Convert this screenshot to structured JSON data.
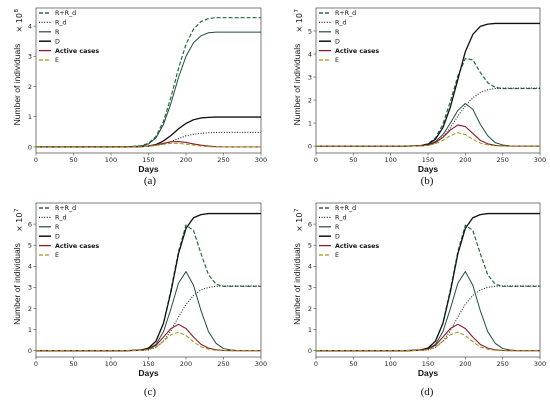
{
  "colors": {
    "R+R_d": "#1f6e3a",
    "R_d": "#222222",
    "R": "#1f4f3f",
    "D": "#111111",
    "Active cases": "#8b1a2b",
    "E": "#9a9a18"
  },
  "legend_bold": [
    "Active cases"
  ],
  "chart_data": [
    {
      "type": "line",
      "caption": "(a)",
      "xlabel": "Days",
      "ylabel": "Number of individuals",
      "scale_label": "× 10",
      "scale_exp": "8",
      "xlim": [
        0,
        300
      ],
      "ylim": [
        -0.2,
        4.6
      ],
      "xticks": [
        "0",
        "50",
        "100",
        "150",
        "200",
        "250",
        "300"
      ],
      "yticks": [
        "0",
        "1",
        "2",
        "3",
        "4"
      ],
      "x": [
        0,
        20,
        40,
        60,
        80,
        100,
        120,
        140,
        150,
        160,
        170,
        180,
        190,
        200,
        210,
        220,
        230,
        240,
        250,
        260,
        270,
        280,
        290,
        300
      ],
      "series": [
        {
          "name": "R+R_d",
          "style": "dashed",
          "values": [
            0,
            0,
            0,
            0,
            0,
            0,
            0,
            0.04,
            0.12,
            0.35,
            0.85,
            1.65,
            2.6,
            3.4,
            3.9,
            4.15,
            4.25,
            4.28,
            4.28,
            4.28,
            4.28,
            4.28,
            4.28,
            4.28
          ]
        },
        {
          "name": "R_d",
          "style": "dotted",
          "values": [
            0,
            0,
            0,
            0,
            0,
            0,
            0,
            0.01,
            0.02,
            0.05,
            0.1,
            0.18,
            0.28,
            0.37,
            0.42,
            0.45,
            0.47,
            0.48,
            0.48,
            0.48,
            0.48,
            0.48,
            0.48,
            0.48
          ]
        },
        {
          "name": "R",
          "style": "solid",
          "values": [
            0,
            0,
            0,
            0,
            0,
            0,
            0,
            0.03,
            0.1,
            0.3,
            0.75,
            1.45,
            2.3,
            3.0,
            3.45,
            3.68,
            3.78,
            3.8,
            3.8,
            3.8,
            3.8,
            3.8,
            3.8,
            3.8
          ]
        },
        {
          "name": "D",
          "style": "solid",
          "values": [
            0,
            0,
            0,
            0,
            0,
            0,
            0,
            0.01,
            0.03,
            0.08,
            0.2,
            0.38,
            0.6,
            0.78,
            0.9,
            0.96,
            0.98,
            0.99,
            0.99,
            0.99,
            0.99,
            0.99,
            0.99,
            0.99
          ]
        },
        {
          "name": "Active cases",
          "style": "solid",
          "values": [
            0,
            0,
            0,
            0,
            0,
            0,
            0,
            0.01,
            0.03,
            0.07,
            0.12,
            0.17,
            0.18,
            0.15,
            0.1,
            0.06,
            0.03,
            0.01,
            0,
            0,
            0,
            0,
            0,
            0
          ]
        },
        {
          "name": "E",
          "style": "dashed",
          "values": [
            0,
            0,
            0,
            0,
            0,
            0,
            0,
            0.01,
            0.02,
            0.05,
            0.09,
            0.12,
            0.12,
            0.09,
            0.06,
            0.03,
            0.01,
            0,
            0,
            0,
            0,
            0,
            0,
            0
          ]
        }
      ]
    },
    {
      "type": "line",
      "caption": "(b)",
      "xlabel": "Days",
      "ylabel": "Number of individuals",
      "scale_label": "× 10",
      "scale_exp": "7",
      "xlim": [
        0,
        300
      ],
      "ylim": [
        -0.3,
        6.0
      ],
      "xticks": [
        "0",
        "50",
        "100",
        "150",
        "200",
        "250",
        "300"
      ],
      "yticks": [
        "0",
        "1",
        "2",
        "3",
        "4",
        "5"
      ],
      "x": [
        0,
        20,
        40,
        60,
        80,
        100,
        120,
        140,
        150,
        160,
        170,
        180,
        190,
        200,
        210,
        220,
        230,
        240,
        250,
        260,
        270,
        280,
        290,
        300
      ],
      "series": [
        {
          "name": "R+R_d",
          "style": "dashed",
          "values": [
            0,
            0,
            0,
            0,
            0,
            0,
            0,
            0.02,
            0.1,
            0.35,
            0.95,
            1.95,
            3.05,
            3.8,
            3.75,
            3.2,
            2.75,
            2.55,
            2.5,
            2.5,
            2.5,
            2.5,
            2.5,
            2.5
          ]
        },
        {
          "name": "R_d",
          "style": "dotted",
          "values": [
            0,
            0,
            0,
            0,
            0,
            0,
            0,
            0.01,
            0.04,
            0.15,
            0.4,
            0.8,
            1.3,
            1.75,
            2.1,
            2.32,
            2.45,
            2.5,
            2.52,
            2.52,
            2.52,
            2.52,
            2.52,
            2.52
          ]
        },
        {
          "name": "R",
          "style": "solid",
          "values": [
            0,
            0,
            0,
            0,
            0,
            0,
            0,
            0.01,
            0.05,
            0.2,
            0.5,
            1.0,
            1.55,
            1.85,
            1.6,
            0.95,
            0.45,
            0.15,
            0.05,
            0.01,
            0,
            0,
            0,
            0
          ]
        },
        {
          "name": "D",
          "style": "solid",
          "values": [
            0,
            0,
            0,
            0,
            0,
            0,
            0,
            0.02,
            0.08,
            0.3,
            0.8,
            1.7,
            2.9,
            4.1,
            4.85,
            5.2,
            5.3,
            5.33,
            5.33,
            5.33,
            5.33,
            5.33,
            5.33,
            5.33
          ]
        },
        {
          "name": "Active cases",
          "style": "solid",
          "values": [
            0,
            0,
            0,
            0,
            0,
            0,
            0,
            0.01,
            0.04,
            0.15,
            0.38,
            0.7,
            0.92,
            0.85,
            0.55,
            0.25,
            0.1,
            0.03,
            0.01,
            0,
            0,
            0,
            0,
            0
          ]
        },
        {
          "name": "E",
          "style": "dashed",
          "values": [
            0,
            0,
            0,
            0,
            0,
            0,
            0,
            0.01,
            0.03,
            0.1,
            0.25,
            0.45,
            0.58,
            0.5,
            0.3,
            0.13,
            0.05,
            0.01,
            0,
            0,
            0,
            0,
            0,
            0
          ]
        }
      ]
    },
    {
      "type": "line",
      "caption": "(c)",
      "xlabel": "Days",
      "ylabel": "Number of individuals",
      "scale_label": "× 10",
      "scale_exp": "7",
      "xlim": [
        0,
        300
      ],
      "ylim": [
        -0.3,
        7.0
      ],
      "xticks": [
        "0",
        "50",
        "100",
        "150",
        "200",
        "250",
        "300"
      ],
      "yticks": [
        "0",
        "1",
        "2",
        "3",
        "4",
        "5",
        "6"
      ],
      "x": [
        0,
        20,
        40,
        60,
        80,
        100,
        120,
        140,
        150,
        160,
        170,
        180,
        190,
        200,
        210,
        220,
        230,
        240,
        250,
        260,
        270,
        280,
        290,
        300
      ],
      "series": [
        {
          "name": "R+R_d",
          "style": "dashed",
          "values": [
            0,
            0,
            0,
            0,
            0,
            0,
            0,
            0.03,
            0.12,
            0.45,
            1.3,
            2.9,
            4.7,
            5.95,
            5.7,
            4.6,
            3.6,
            3.15,
            3.05,
            3.05,
            3.05,
            3.05,
            3.05,
            3.05
          ]
        },
        {
          "name": "R_d",
          "style": "dotted",
          "values": [
            0,
            0,
            0,
            0,
            0,
            0,
            0,
            0.01,
            0.04,
            0.15,
            0.45,
            0.95,
            1.6,
            2.2,
            2.62,
            2.88,
            3.0,
            3.05,
            3.07,
            3.07,
            3.07,
            3.07,
            3.07,
            3.07
          ]
        },
        {
          "name": "R",
          "style": "solid",
          "values": [
            0,
            0,
            0,
            0,
            0,
            0,
            0,
            0.02,
            0.08,
            0.3,
            0.9,
            2.0,
            3.2,
            3.75,
            3.1,
            1.9,
            0.9,
            0.35,
            0.1,
            0.03,
            0,
            0,
            0,
            0
          ]
        },
        {
          "name": "D",
          "style": "solid",
          "values": [
            0,
            0,
            0,
            0,
            0,
            0,
            0,
            0.03,
            0.12,
            0.45,
            1.3,
            2.8,
            4.6,
            5.8,
            6.3,
            6.45,
            6.5,
            6.5,
            6.5,
            6.5,
            6.5,
            6.5,
            6.5,
            6.5
          ]
        },
        {
          "name": "Active cases",
          "style": "solid",
          "values": [
            0,
            0,
            0,
            0,
            0,
            0,
            0,
            0.02,
            0.07,
            0.25,
            0.65,
            1.05,
            1.25,
            1.05,
            0.65,
            0.3,
            0.12,
            0.04,
            0.01,
            0,
            0,
            0,
            0,
            0
          ]
        },
        {
          "name": "E",
          "style": "dashed",
          "values": [
            0,
            0,
            0,
            0,
            0,
            0,
            0,
            0.01,
            0.05,
            0.17,
            0.45,
            0.75,
            0.88,
            0.72,
            0.42,
            0.18,
            0.07,
            0.02,
            0,
            0,
            0,
            0,
            0,
            0
          ]
        }
      ]
    },
    {
      "type": "line",
      "caption": "(d)",
      "xlabel": "Days",
      "ylabel": "Number of individuals",
      "scale_label": "× 10",
      "scale_exp": "7",
      "xlim": [
        0,
        300
      ],
      "ylim": [
        -0.3,
        7.0
      ],
      "xticks": [
        "0",
        "50",
        "100",
        "150",
        "200",
        "250",
        "300"
      ],
      "yticks": [
        "0",
        "1",
        "2",
        "3",
        "4",
        "5",
        "6"
      ],
      "x": [
        0,
        20,
        40,
        60,
        80,
        100,
        120,
        140,
        150,
        160,
        170,
        180,
        190,
        200,
        210,
        220,
        230,
        240,
        250,
        260,
        270,
        280,
        290,
        300
      ],
      "series": [
        {
          "name": "R+R_d",
          "style": "dashed",
          "values": [
            0,
            0,
            0,
            0,
            0,
            0,
            0,
            0.03,
            0.12,
            0.45,
            1.3,
            2.9,
            4.7,
            5.95,
            5.7,
            4.6,
            3.6,
            3.15,
            3.05,
            3.05,
            3.05,
            3.05,
            3.05,
            3.05
          ]
        },
        {
          "name": "R_d",
          "style": "dotted",
          "values": [
            0,
            0,
            0,
            0,
            0,
            0,
            0,
            0.01,
            0.04,
            0.15,
            0.45,
            0.95,
            1.6,
            2.2,
            2.62,
            2.88,
            3.0,
            3.05,
            3.07,
            3.07,
            3.07,
            3.07,
            3.07,
            3.07
          ]
        },
        {
          "name": "R",
          "style": "solid",
          "values": [
            0,
            0,
            0,
            0,
            0,
            0,
            0,
            0.02,
            0.08,
            0.3,
            0.9,
            2.0,
            3.2,
            3.75,
            3.1,
            1.9,
            0.9,
            0.35,
            0.1,
            0.03,
            0,
            0,
            0,
            0
          ]
        },
        {
          "name": "D",
          "style": "solid",
          "values": [
            0,
            0,
            0,
            0,
            0,
            0,
            0,
            0.03,
            0.12,
            0.45,
            1.3,
            2.8,
            4.6,
            5.8,
            6.3,
            6.45,
            6.5,
            6.5,
            6.5,
            6.5,
            6.5,
            6.5,
            6.5,
            6.5
          ]
        },
        {
          "name": "Active cases",
          "style": "solid",
          "values": [
            0,
            0,
            0,
            0,
            0,
            0,
            0,
            0.02,
            0.07,
            0.25,
            0.65,
            1.05,
            1.25,
            1.05,
            0.65,
            0.3,
            0.12,
            0.04,
            0.01,
            0,
            0,
            0,
            0,
            0
          ]
        },
        {
          "name": "E",
          "style": "dashed",
          "values": [
            0,
            0,
            0,
            0,
            0,
            0,
            0,
            0.01,
            0.05,
            0.17,
            0.45,
            0.75,
            0.88,
            0.72,
            0.42,
            0.18,
            0.07,
            0.02,
            0,
            0,
            0,
            0,
            0,
            0
          ]
        }
      ]
    }
  ]
}
